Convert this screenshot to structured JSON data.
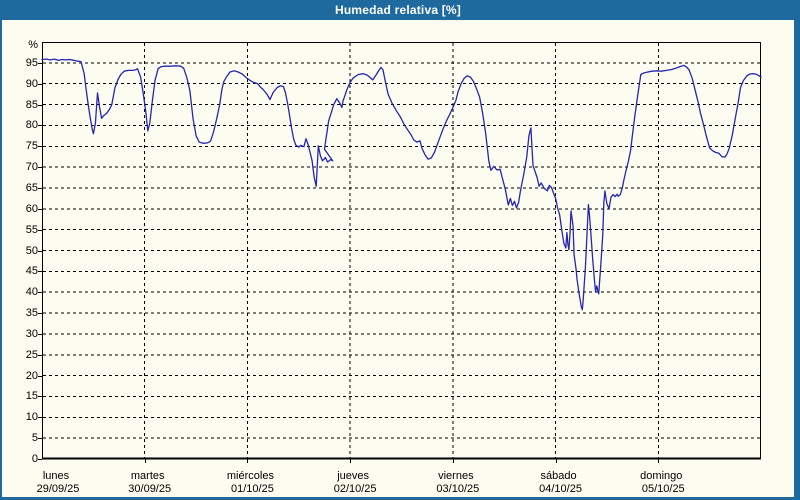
{
  "window": {
    "title": "Humedad relativa [%]"
  },
  "colors": {
    "titlebar_bg": "#1e6a9e",
    "frame": "#1e6a9e",
    "background": "#fcfcf0",
    "grid": "#000000",
    "axis": "#000000",
    "line": "#2626b0",
    "title_text": "#ffffff",
    "label_text": "#000000"
  },
  "chart_data": {
    "type": "line",
    "title": "Humedad relativa [%]",
    "y_unit_label": "%",
    "ylim": [
      0,
      100
    ],
    "ytick_step": 5,
    "ytick_labels": [
      0,
      5,
      10,
      15,
      20,
      25,
      30,
      35,
      40,
      45,
      50,
      55,
      60,
      65,
      70,
      75,
      80,
      85,
      90,
      95
    ],
    "grid": true,
    "legend": "none",
    "x_days": [
      {
        "label": "lunes",
        "date": "29/09/25"
      },
      {
        "label": "martes",
        "date": "30/09/25"
      },
      {
        "label": "miércoles",
        "date": "01/10/25"
      },
      {
        "label": "jueves",
        "date": "02/10/25"
      },
      {
        "label": "viernes",
        "date": "03/10/25"
      },
      {
        "label": "sábado",
        "date": "04/10/25"
      },
      {
        "label": "domingo",
        "date": "05/10/25"
      }
    ],
    "series": [
      {
        "name": "Humedad relativa",
        "color": "#2626b0",
        "x_unit": "days_from_start",
        "points": [
          [
            0,
            95.8
          ],
          [
            0.04,
            95.9
          ],
          [
            0.08,
            95.7
          ],
          [
            0.12,
            95.9
          ],
          [
            0.16,
            95.6
          ],
          [
            0.2,
            95.8
          ],
          [
            0.23,
            95.7
          ],
          [
            0.27,
            95.8
          ],
          [
            0.31,
            95.6
          ],
          [
            0.35,
            95.4
          ],
          [
            0.38,
            95.3
          ],
          [
            0.41,
            92.5
          ],
          [
            0.43,
            88.5
          ],
          [
            0.45,
            85
          ],
          [
            0.47,
            81.7
          ],
          [
            0.49,
            79
          ],
          [
            0.5,
            78
          ],
          [
            0.52,
            80.5
          ],
          [
            0.54,
            87.8
          ],
          [
            0.56,
            84.5
          ],
          [
            0.58,
            81.7
          ],
          [
            0.6,
            82.3
          ],
          [
            0.63,
            82.9
          ],
          [
            0.66,
            84
          ],
          [
            0.68,
            85
          ],
          [
            0.71,
            89
          ],
          [
            0.74,
            91
          ],
          [
            0.77,
            92.3
          ],
          [
            0.8,
            93
          ],
          [
            0.84,
            93.2
          ],
          [
            0.88,
            93.2
          ],
          [
            0.91,
            93.3
          ],
          [
            0.93,
            93.6
          ],
          [
            0.96,
            91.6
          ],
          [
            0.98,
            88.5
          ],
          [
            1.01,
            83.5
          ],
          [
            1.03,
            78.7
          ],
          [
            1.05,
            80.5
          ],
          [
            1.07,
            85
          ],
          [
            1.1,
            90.8
          ],
          [
            1.13,
            93.6
          ],
          [
            1.16,
            94.1
          ],
          [
            1.2,
            94.2
          ],
          [
            1.25,
            94.2
          ],
          [
            1.3,
            94.3
          ],
          [
            1.35,
            94.2
          ],
          [
            1.38,
            93.7
          ],
          [
            1.41,
            91.5
          ],
          [
            1.44,
            88.3
          ],
          [
            1.47,
            81.7
          ],
          [
            1.5,
            77.5
          ],
          [
            1.53,
            76
          ],
          [
            1.57,
            75.7
          ],
          [
            1.61,
            75.8
          ],
          [
            1.64,
            76.2
          ],
          [
            1.67,
            78.4
          ],
          [
            1.7,
            81.5
          ],
          [
            1.73,
            85
          ],
          [
            1.75,
            88.5
          ],
          [
            1.77,
            90.5
          ],
          [
            1.8,
            91.8
          ],
          [
            1.83,
            92.8
          ],
          [
            1.87,
            93.1
          ],
          [
            1.91,
            92.8
          ],
          [
            1.95,
            92.3
          ],
          [
            2,
            91.2
          ],
          [
            2.05,
            90.4
          ],
          [
            2.1,
            90
          ],
          [
            2.13,
            89.1
          ],
          [
            2.15,
            88.7
          ],
          [
            2.19,
            87.5
          ],
          [
            2.22,
            86.2
          ],
          [
            2.25,
            87.9
          ],
          [
            2.29,
            89.1
          ],
          [
            2.32,
            89.5
          ],
          [
            2.35,
            89.3
          ],
          [
            2.37,
            87.9
          ],
          [
            2.39,
            85.4
          ],
          [
            2.41,
            82.5
          ],
          [
            2.43,
            79.3
          ],
          [
            2.45,
            76.8
          ],
          [
            2.47,
            75.3
          ],
          [
            2.5,
            74.8
          ],
          [
            2.52,
            75.2
          ],
          [
            2.55,
            74.9
          ],
          [
            2.57,
            76.8
          ],
          [
            2.59,
            75.5
          ],
          [
            2.61,
            73.5
          ],
          [
            2.63,
            71.5
          ],
          [
            2.65,
            67.5
          ],
          [
            2.67,
            65.4
          ],
          [
            2.69,
            75.1
          ],
          [
            2.71,
            72.7
          ],
          [
            2.73,
            71.5
          ],
          [
            2.76,
            72.3
          ],
          [
            2.78,
            71.2
          ],
          [
            2.81,
            71.8
          ],
          [
            2.83,
            71.5
          ],
          [
            2.75,
            74.3
          ],
          [
            2.77,
            77.6
          ],
          [
            2.79,
            81
          ],
          [
            2.82,
            83.4
          ],
          [
            2.84,
            85
          ],
          [
            2.87,
            86.4
          ],
          [
            2.9,
            85.3
          ],
          [
            2.92,
            84.3
          ],
          [
            2.93,
            85.8
          ],
          [
            2.97,
            88.7
          ],
          [
            3,
            90.3
          ],
          [
            3.03,
            91.4
          ],
          [
            3.08,
            92.2
          ],
          [
            3.13,
            92.4
          ],
          [
            3.17,
            92
          ],
          [
            3.22,
            90.9
          ],
          [
            3.25,
            92
          ],
          [
            3.28,
            93.2
          ],
          [
            3.3,
            93.9
          ],
          [
            3.32,
            93.3
          ],
          [
            3.34,
            90.8
          ],
          [
            3.37,
            87.5
          ],
          [
            3.41,
            85.2
          ],
          [
            3.45,
            83.5
          ],
          [
            3.49,
            82
          ],
          [
            3.52,
            80.5
          ],
          [
            3.55,
            79.3
          ],
          [
            3.59,
            77.9
          ],
          [
            3.62,
            76.5
          ],
          [
            3.65,
            76
          ],
          [
            3.68,
            76.3
          ],
          [
            3.7,
            74.5
          ],
          [
            3.73,
            72.9
          ],
          [
            3.76,
            71.9
          ],
          [
            3.79,
            72.2
          ],
          [
            3.82,
            73.5
          ],
          [
            3.85,
            75.5
          ],
          [
            3.88,
            77.5
          ],
          [
            3.91,
            79.5
          ],
          [
            3.94,
            81.2
          ],
          [
            3.97,
            82.7
          ],
          [
            4,
            84.3
          ],
          [
            4.03,
            86
          ],
          [
            4.05,
            88
          ],
          [
            4.08,
            90
          ],
          [
            4.11,
            91.3
          ],
          [
            4.14,
            91.9
          ],
          [
            4.17,
            91.6
          ],
          [
            4.2,
            90.6
          ],
          [
            4.23,
            88.8
          ],
          [
            4.26,
            86.8
          ],
          [
            4.29,
            83
          ],
          [
            4.32,
            78
          ],
          [
            4.35,
            71.5
          ],
          [
            4.37,
            69.2
          ],
          [
            4.4,
            70.2
          ],
          [
            4.43,
            69.3
          ],
          [
            4.46,
            69.5
          ],
          [
            4.48,
            67.5
          ],
          [
            4.51,
            64.8
          ],
          [
            4.54,
            60.9
          ],
          [
            4.56,
            62.5
          ],
          [
            4.58,
            60.8
          ],
          [
            4.6,
            61.8
          ],
          [
            4.62,
            60.2
          ],
          [
            4.64,
            61.5
          ],
          [
            4.66,
            64.5
          ],
          [
            4.69,
            68.2
          ],
          [
            4.72,
            72.5
          ],
          [
            4.74,
            77.5
          ],
          [
            4.76,
            79.4
          ],
          [
            4.77,
            75
          ],
          [
            4.78,
            70.4
          ],
          [
            4.8,
            69
          ],
          [
            4.82,
            67.5
          ],
          [
            4.84,
            65.4
          ],
          [
            4.86,
            66.2
          ],
          [
            4.89,
            64.9
          ],
          [
            4.92,
            64.3
          ],
          [
            4.94,
            65.6
          ],
          [
            4.96,
            65.1
          ],
          [
            4.98,
            63.8
          ],
          [
            5,
            62.5
          ],
          [
            5.02,
            60.2
          ],
          [
            5.04,
            58.5
          ],
          [
            5.06,
            55
          ],
          [
            5.08,
            51.8
          ],
          [
            5.1,
            50.6
          ],
          [
            5.11,
            54.3
          ],
          [
            5.12,
            51.5
          ],
          [
            5.13,
            50.2
          ],
          [
            5.14,
            54
          ],
          [
            5.15,
            59.5
          ],
          [
            5.17,
            56
          ],
          [
            5.18,
            49
          ],
          [
            5.2,
            45.5
          ],
          [
            5.21,
            43
          ],
          [
            5.23,
            39.5
          ],
          [
            5.25,
            36.5
          ],
          [
            5.26,
            35.8
          ],
          [
            5.27,
            38.5
          ],
          [
            5.29,
            46
          ],
          [
            5.31,
            56
          ],
          [
            5.32,
            61
          ],
          [
            5.33,
            58.5
          ],
          [
            5.35,
            52
          ],
          [
            5.36,
            48.5
          ],
          [
            5.38,
            42.5
          ],
          [
            5.39,
            40
          ],
          [
            5.4,
            41.5
          ],
          [
            5.42,
            39.6
          ],
          [
            5.44,
            46.5
          ],
          [
            5.46,
            53.9
          ],
          [
            5.47,
            61.4
          ],
          [
            5.48,
            64.3
          ],
          [
            5.5,
            61.2
          ],
          [
            5.52,
            60
          ],
          [
            5.54,
            62.8
          ],
          [
            5.56,
            63.4
          ],
          [
            5.58,
            62.9
          ],
          [
            5.6,
            63.5
          ],
          [
            5.61,
            63
          ],
          [
            5.63,
            63.4
          ],
          [
            5.65,
            65
          ],
          [
            5.67,
            67.5
          ],
          [
            5.69,
            69.5
          ],
          [
            5.71,
            71.5
          ],
          [
            5.73,
            74
          ],
          [
            5.75,
            78
          ],
          [
            5.77,
            82
          ],
          [
            5.79,
            85.5
          ],
          [
            5.81,
            89
          ],
          [
            5.83,
            92.2
          ],
          [
            5.86,
            92.6
          ],
          [
            5.9,
            92.8
          ],
          [
            5.94,
            93
          ],
          [
            5.99,
            93.1
          ],
          [
            6.03,
            93
          ],
          [
            6.08,
            93.2
          ],
          [
            6.13,
            93.4
          ],
          [
            6.17,
            93.7
          ],
          [
            6.21,
            94.1
          ],
          [
            6.25,
            94.4
          ],
          [
            6.28,
            93.9
          ],
          [
            6.3,
            93.3
          ],
          [
            6.33,
            91.3
          ],
          [
            6.36,
            88.3
          ],
          [
            6.39,
            85.4
          ],
          [
            6.41,
            83
          ],
          [
            6.44,
            80.2
          ],
          [
            6.47,
            77.2
          ],
          [
            6.5,
            74.6
          ],
          [
            6.53,
            73.9
          ],
          [
            6.56,
            73.5
          ],
          [
            6.59,
            73.3
          ],
          [
            6.62,
            72.5
          ],
          [
            6.65,
            72.4
          ],
          [
            6.67,
            73.2
          ],
          [
            6.69,
            74.5
          ],
          [
            6.72,
            77.6
          ],
          [
            6.75,
            81.7
          ],
          [
            6.78,
            85.8
          ],
          [
            6.8,
            89.1
          ],
          [
            6.83,
            90.8
          ],
          [
            6.86,
            91.8
          ],
          [
            6.89,
            92.3
          ],
          [
            6.92,
            92.4
          ],
          [
            6.95,
            92.3
          ],
          [
            6.98,
            91.9
          ],
          [
            7,
            91.6
          ]
        ]
      }
    ]
  }
}
